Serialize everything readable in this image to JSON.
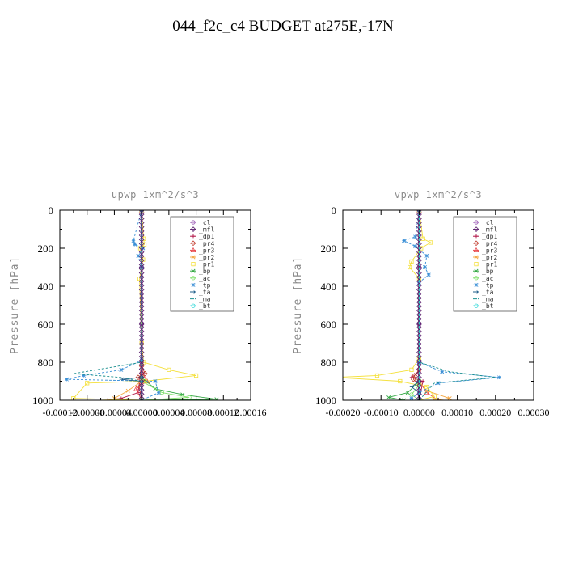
{
  "page": {
    "title": "044_f2c_c4  BUDGET at275E,-17N"
  },
  "chart_data": [
    {
      "type": "line",
      "title": "upwp   1xm^2/s^3",
      "ylabel": "Pressure [hPa]",
      "xlabel": "",
      "xlim": [
        -0.00012,
        0.00016
      ],
      "ylim": [
        1000,
        0
      ],
      "x_ticks": [
        -0.00012,
        -8e-05,
        -4e-05,
        0.0,
        4e-05,
        8e-05,
        0.00012,
        0.00016
      ],
      "x_tick_labels": [
        "-0.00012",
        "-0.00008",
        "-0.00004",
        "0.00000",
        "0.00004",
        "0.00008",
        "0.00012",
        "0.00016"
      ],
      "y_ticks": [
        0,
        200,
        400,
        600,
        800,
        1000
      ],
      "y_tick_labels": [
        "0",
        "200",
        "400",
        "600",
        "800",
        "1000"
      ],
      "grid": false,
      "legend_position": "top-right",
      "series": [
        {
          "name": "_cl",
          "color": "#9b59b6",
          "marker": "circle",
          "points": [
            [
              0,
              0
            ],
            [
              0,
              300
            ],
            [
              0,
              600
            ],
            [
              0,
              800
            ],
            [
              0,
              900
            ],
            [
              0,
              1000
            ]
          ]
        },
        {
          "name": "_mfl",
          "color": "#5b1f6e",
          "marker": "diamond",
          "points": [
            [
              0,
              0
            ],
            [
              0,
              300
            ],
            [
              0,
              600
            ],
            [
              0,
              800
            ],
            [
              0,
              900
            ],
            [
              0,
              1000
            ]
          ]
        },
        {
          "name": "_dp1",
          "color": "#b2184a",
          "marker": "plus",
          "points": [
            [
              0,
              0
            ],
            [
              0,
              800
            ],
            [
              -5e-06,
              960
            ],
            [
              -3e-05,
              990
            ],
            [
              -5e-05,
              1000
            ]
          ]
        },
        {
          "name": "_pr4",
          "color": "#c0392b",
          "marker": "diamond",
          "points": [
            [
              0,
              0
            ],
            [
              0,
              820
            ],
            [
              5e-06,
              860
            ],
            [
              -5e-06,
              880
            ],
            [
              6e-06,
              900
            ],
            [
              -4e-06,
              920
            ],
            [
              0,
              1000
            ]
          ]
        },
        {
          "name": "_pr3",
          "color": "#e8474c",
          "marker": "triangle",
          "points": [
            [
              0,
              0
            ],
            [
              0,
              850
            ],
            [
              8e-06,
              900
            ],
            [
              -8e-06,
              940
            ],
            [
              0,
              1000
            ]
          ]
        },
        {
          "name": "_pr2",
          "color": "#f5a742",
          "marker": "cross",
          "points": [
            [
              0,
              0
            ],
            [
              0,
              900
            ],
            [
              -2e-05,
              950
            ],
            [
              -4e-05,
              990
            ],
            [
              -2e-05,
              1000
            ]
          ]
        },
        {
          "name": "_pr1",
          "color": "#f4e03a",
          "marker": "square",
          "points": [
            [
              0,
              0
            ],
            [
              3e-06,
              150
            ],
            [
              4e-06,
              180
            ],
            [
              -2e-06,
              200
            ],
            [
              2e-06,
              260
            ],
            [
              -3e-06,
              360
            ],
            [
              0,
              700
            ],
            [
              3e-06,
              800
            ],
            [
              4e-05,
              840
            ],
            [
              8e-05,
              870
            ],
            [
              5e-06,
              900
            ],
            [
              -8e-05,
              910
            ],
            [
              -0.0001,
              990
            ],
            [
              0,
              1000
            ]
          ]
        },
        {
          "name": "_bp",
          "color": "#35a845",
          "marker": "cross",
          "points": [
            [
              0,
              0
            ],
            [
              0,
              880
            ],
            [
              2e-05,
              940
            ],
            [
              6e-05,
              970
            ],
            [
              0.00011,
              995
            ],
            [
              0,
              1000
            ]
          ]
        },
        {
          "name": "_ac",
          "color": "#7fe06a",
          "marker": "circle",
          "points": [
            [
              0,
              0
            ],
            [
              0,
              900
            ],
            [
              3e-05,
              960
            ],
            [
              7e-05,
              985
            ],
            [
              0,
              1000
            ]
          ]
        },
        {
          "name": "_tp",
          "color": "#3a8fd6",
          "marker": "asterisk",
          "points": [
            [
              0,
              0
            ],
            [
              -1.2e-05,
              160
            ],
            [
              -1e-05,
              180
            ],
            [
              2e-06,
              200
            ],
            [
              -5e-06,
              240
            ],
            [
              0,
              300
            ],
            [
              0,
              790
            ],
            [
              -3e-05,
              840
            ],
            [
              -8.5e-05,
              870
            ],
            [
              -0.00011,
              890
            ],
            [
              2e-05,
              900
            ],
            [
              2.5e-05,
              960
            ],
            [
              0,
              1000
            ]
          ]
        },
        {
          "name": "_ta",
          "color": "#1f5e8a",
          "marker": "arrow",
          "points": [
            [
              0,
              0
            ],
            [
              0,
              880
            ],
            [
              -3e-05,
              890
            ],
            [
              0,
              900
            ],
            [
              0,
              1000
            ]
          ]
        },
        {
          "name": "_ma",
          "color": "#1a8f8f",
          "marker": "none",
          "points": [
            [
              0,
              0
            ],
            [
              0,
              800
            ],
            [
              -0.0001,
              860
            ],
            [
              -3e-05,
              880
            ],
            [
              0,
              900
            ],
            [
              0,
              1000
            ]
          ]
        },
        {
          "name": "_bt",
          "color": "#2fd8d8",
          "marker": "circle",
          "points": [
            [
              0,
              0
            ],
            [
              0,
              1000
            ]
          ]
        }
      ]
    },
    {
      "type": "line",
      "title": "vpwp   1xm^2/s^3",
      "ylabel": "Pressure [hPa]",
      "xlabel": "",
      "xlim": [
        -0.0002,
        0.0003
      ],
      "ylim": [
        1000,
        0
      ],
      "x_ticks": [
        -0.0002,
        -0.0001,
        0.0,
        0.0001,
        0.0002,
        0.0003
      ],
      "x_tick_labels": [
        "-0.00020",
        "-0.00010",
        "0.00000",
        "0.00010",
        "0.00020",
        "0.00030"
      ],
      "y_ticks": [
        0,
        200,
        400,
        600,
        800,
        1000
      ],
      "y_tick_labels": [
        "0",
        "200",
        "400",
        "600",
        "800",
        "1000"
      ],
      "grid": false,
      "legend_position": "top-right",
      "series": [
        {
          "name": "_cl",
          "color": "#9b59b6",
          "marker": "circle",
          "points": [
            [
              0,
              0
            ],
            [
              0,
              300
            ],
            [
              0,
              600
            ],
            [
              0,
              800
            ],
            [
              0,
              900
            ],
            [
              0,
              1000
            ]
          ]
        },
        {
          "name": "_mfl",
          "color": "#5b1f6e",
          "marker": "diamond",
          "points": [
            [
              0,
              0
            ],
            [
              0,
              300
            ],
            [
              0,
              600
            ],
            [
              0,
              800
            ],
            [
              0,
              900
            ],
            [
              0,
              1000
            ]
          ]
        },
        {
          "name": "_dp1",
          "color": "#b2184a",
          "marker": "plus",
          "points": [
            [
              0,
              0
            ],
            [
              0,
              850
            ],
            [
              -2e-05,
              880
            ],
            [
              1e-05,
              900
            ],
            [
              0,
              1000
            ]
          ]
        },
        {
          "name": "_pr4",
          "color": "#c0392b",
          "marker": "diamond",
          "points": [
            [
              0,
              0
            ],
            [
              0,
              840
            ],
            [
              -1.2e-05,
              870
            ],
            [
              -1.5e-05,
              890
            ],
            [
              0,
              920
            ],
            [
              0,
              1000
            ]
          ]
        },
        {
          "name": "_pr3",
          "color": "#e8474c",
          "marker": "triangle",
          "points": [
            [
              0,
              0
            ],
            [
              0,
              900
            ],
            [
              2e-05,
              960
            ],
            [
              5e-05,
              1000
            ]
          ]
        },
        {
          "name": "_pr2",
          "color": "#f5a742",
          "marker": "cross",
          "points": [
            [
              0,
              0
            ],
            [
              0,
              900
            ],
            [
              2e-05,
              950
            ],
            [
              8e-05,
              990
            ],
            [
              4e-05,
              1000
            ]
          ]
        },
        {
          "name": "_pr1",
          "color": "#f4e03a",
          "marker": "square",
          "points": [
            [
              0,
              0
            ],
            [
              1e-05,
              150
            ],
            [
              3e-05,
              170
            ],
            [
              5e-06,
              200
            ],
            [
              -2e-05,
              270
            ],
            [
              -2.5e-05,
              300
            ],
            [
              0,
              360
            ],
            [
              0,
              780
            ],
            [
              -2e-05,
              840
            ],
            [
              -0.00011,
              870
            ],
            [
              -0.00022,
              880
            ],
            [
              -5e-05,
              900
            ],
            [
              2e-05,
              930
            ],
            [
              4e-05,
              980
            ],
            [
              0,
              1000
            ]
          ]
        },
        {
          "name": "_bp",
          "color": "#35a845",
          "marker": "cross",
          "points": [
            [
              0,
              0
            ],
            [
              0,
              900
            ],
            [
              -3e-05,
              960
            ],
            [
              -8e-05,
              985
            ],
            [
              -4e-05,
              1000
            ]
          ]
        },
        {
          "name": "_ac",
          "color": "#7fe06a",
          "marker": "circle",
          "points": [
            [
              0,
              0
            ],
            [
              0,
              920
            ],
            [
              -2e-05,
              970
            ],
            [
              0,
              1000
            ]
          ]
        },
        {
          "name": "_tp",
          "color": "#3a8fd6",
          "marker": "asterisk",
          "points": [
            [
              0,
              0
            ],
            [
              -1e-05,
              140
            ],
            [
              -4e-05,
              160
            ],
            [
              -1e-05,
              190
            ],
            [
              2e-05,
              240
            ],
            [
              1.5e-05,
              300
            ],
            [
              2.5e-05,
              340
            ],
            [
              0,
              380
            ],
            [
              0,
              800
            ],
            [
              6e-05,
              850
            ],
            [
              0.00021,
              880
            ],
            [
              5e-05,
              910
            ],
            [
              0,
              960
            ],
            [
              -2e-05,
              990
            ],
            [
              0,
              1000
            ]
          ]
        },
        {
          "name": "_ta",
          "color": "#1f5e8a",
          "marker": "arrow",
          "points": [
            [
              0,
              0
            ],
            [
              0,
              900
            ],
            [
              -2e-05,
              930
            ],
            [
              0,
              960
            ],
            [
              0,
              1000
            ]
          ]
        },
        {
          "name": "_ma",
          "color": "#1a8f8f",
          "marker": "none",
          "points": [
            [
              0,
              0
            ],
            [
              0,
              800
            ],
            [
              8e-05,
              850
            ],
            [
              0.0002,
              880
            ],
            [
              4e-05,
              910
            ],
            [
              0,
              1000
            ]
          ]
        },
        {
          "name": "_bt",
          "color": "#2fd8d8",
          "marker": "circle",
          "points": [
            [
              0,
              0
            ],
            [
              0,
              1000
            ]
          ]
        }
      ]
    }
  ]
}
